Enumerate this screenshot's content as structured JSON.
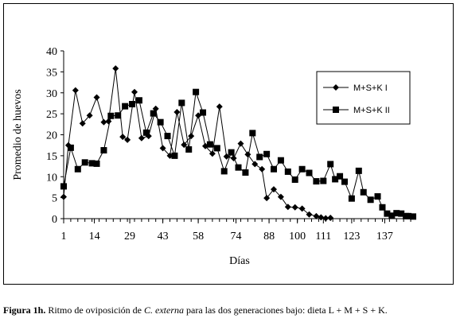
{
  "caption": {
    "label": "Figura 1h.",
    "text_a": " Ritmo de oviposición de ",
    "species": "C. externa",
    "text_b": " para las dos generaciones bajo: dieta L + M + S + K."
  },
  "chart_data": {
    "type": "line",
    "title": "",
    "xlabel": "Días",
    "ylabel": "Promedio de huevos",
    "ylim": [
      0,
      40
    ],
    "yticks": [
      0,
      5,
      10,
      15,
      20,
      25,
      30,
      35,
      40
    ],
    "xticks": [
      1,
      14,
      29,
      43,
      58,
      74,
      88,
      100,
      111,
      123,
      137
    ],
    "xlim": [
      1,
      147
    ],
    "grid": false,
    "legend_position": "right",
    "series": [
      {
        "name": "M+S+K I",
        "marker": "diamond",
        "points": [
          [
            1,
            5.2
          ],
          [
            3,
            17.5
          ],
          [
            6,
            30.6
          ],
          [
            9,
            22.7
          ],
          [
            12,
            24.6
          ],
          [
            15,
            28.9
          ],
          [
            18,
            23.0
          ],
          [
            20,
            23.2
          ],
          [
            23,
            35.8
          ],
          [
            26,
            19.5
          ],
          [
            28,
            18.8
          ],
          [
            31,
            30.2
          ],
          [
            34,
            19.2
          ],
          [
            37,
            19.7
          ],
          [
            40,
            26.2
          ],
          [
            43,
            16.8
          ],
          [
            46,
            15.0
          ],
          [
            49,
            25.4
          ],
          [
            52,
            17.6
          ],
          [
            55,
            19.7
          ],
          [
            58,
            24.6
          ],
          [
            61,
            17.3
          ],
          [
            64,
            15.5
          ],
          [
            67,
            26.7
          ],
          [
            70,
            14.8
          ],
          [
            73,
            14.4
          ],
          [
            76,
            17.9
          ],
          [
            79,
            15.3
          ],
          [
            82,
            13.0
          ],
          [
            85,
            11.8
          ],
          [
            87,
            4.9
          ],
          [
            90,
            7.0
          ],
          [
            93,
            5.2
          ],
          [
            96,
            2.8
          ],
          [
            99,
            2.7
          ],
          [
            102,
            2.4
          ],
          [
            105,
            1.0
          ],
          [
            108,
            0.6
          ],
          [
            110,
            0.3
          ],
          [
            112,
            0.1
          ],
          [
            114,
            0.2
          ]
        ]
      },
      {
        "name": "M+S+K II",
        "marker": "square",
        "points": [
          [
            1,
            7.7
          ],
          [
            4,
            16.9
          ],
          [
            7,
            11.8
          ],
          [
            10,
            13.4
          ],
          [
            13,
            13.2
          ],
          [
            15,
            13.1
          ],
          [
            18,
            16.3
          ],
          [
            21,
            24.5
          ],
          [
            24,
            24.6
          ],
          [
            27,
            26.8
          ],
          [
            30,
            27.3
          ],
          [
            33,
            28.2
          ],
          [
            36,
            20.5
          ],
          [
            39,
            25.1
          ],
          [
            42,
            23.0
          ],
          [
            45,
            19.7
          ],
          [
            48,
            15.0
          ],
          [
            51,
            27.6
          ],
          [
            54,
            16.5
          ],
          [
            57,
            30.2
          ],
          [
            60,
            25.3
          ],
          [
            63,
            17.7
          ],
          [
            66,
            16.8
          ],
          [
            69,
            11.3
          ],
          [
            72,
            15.8
          ],
          [
            75,
            12.2
          ],
          [
            78,
            11.0
          ],
          [
            81,
            20.4
          ],
          [
            84,
            14.7
          ],
          [
            87,
            15.4
          ],
          [
            90,
            11.8
          ],
          [
            93,
            13.9
          ],
          [
            96,
            11.2
          ],
          [
            99,
            9.3
          ],
          [
            102,
            11.8
          ],
          [
            105,
            10.9
          ],
          [
            108,
            8.9
          ],
          [
            111,
            9.0
          ],
          [
            114,
            13.0
          ],
          [
            116,
            9.4
          ],
          [
            118,
            10.1
          ],
          [
            120,
            8.8
          ],
          [
            123,
            4.8
          ],
          [
            126,
            11.4
          ],
          [
            128,
            6.3
          ],
          [
            131,
            4.5
          ],
          [
            134,
            5.3
          ],
          [
            136,
            2.7
          ],
          [
            138,
            1.2
          ],
          [
            140,
            0.7
          ],
          [
            142,
            1.3
          ],
          [
            144,
            1.2
          ],
          [
            146,
            0.6
          ],
          [
            147,
            0.6
          ],
          [
            149,
            0.5
          ]
        ]
      }
    ]
  }
}
